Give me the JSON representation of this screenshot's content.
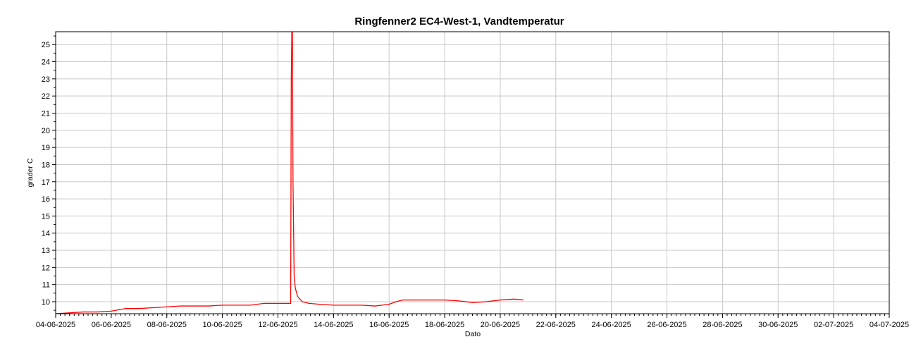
{
  "chart_data": {
    "type": "line",
    "title": "Ringfenner2 EC4-West-1, Vandtemperatur",
    "xlabel": "Dato",
    "ylabel": "grader C",
    "x_type": "date",
    "xlim": [
      "2025-06-04",
      "2025-07-04"
    ],
    "ylim": [
      9.3,
      25.75
    ],
    "x_ticks": [
      "04-06-2025",
      "06-06-2025",
      "08-06-2025",
      "10-06-2025",
      "12-06-2025",
      "14-06-2025",
      "16-06-2025",
      "18-06-2025",
      "20-06-2025",
      "22-06-2025",
      "24-06-2025",
      "26-06-2025",
      "28-06-2025",
      "30-06-2025",
      "02-07-2025",
      "04-07-2025"
    ],
    "y_ticks": [
      "10",
      "11",
      "12",
      "13",
      "14",
      "15",
      "16",
      "17",
      "18",
      "19",
      "20",
      "21",
      "22",
      "23",
      "24",
      "25"
    ],
    "grid": true,
    "legend": "none",
    "series": [
      {
        "color": "#ff0000",
        "x": [
          "2025-06-04T00:00",
          "2025-06-04T12:00",
          "2025-06-05T00:00",
          "2025-06-05T12:00",
          "2025-06-06T00:00",
          "2025-06-06T12:00",
          "2025-06-07T00:00",
          "2025-06-07T12:00",
          "2025-06-08T00:00",
          "2025-06-08T12:00",
          "2025-06-09T00:00",
          "2025-06-09T12:00",
          "2025-06-10T00:00",
          "2025-06-10T12:00",
          "2025-06-11T00:00",
          "2025-06-11T12:00",
          "2025-06-12T00:00",
          "2025-06-12T10:00",
          "2025-06-12T11:00",
          "2025-06-12T11:30",
          "2025-06-12T12:00",
          "2025-06-12T12:30",
          "2025-06-12T13:00",
          "2025-06-12T14:00",
          "2025-06-12T15:00",
          "2025-06-12T17:00",
          "2025-06-12T21:00",
          "2025-06-13T03:00",
          "2025-06-13T12:00",
          "2025-06-14T00:00",
          "2025-06-14T12:00",
          "2025-06-15T00:00",
          "2025-06-15T12:00",
          "2025-06-16T00:00",
          "2025-06-16T06:00",
          "2025-06-16T12:00",
          "2025-06-17T00:00",
          "2025-06-17T12:00",
          "2025-06-18T00:00",
          "2025-06-18T12:00",
          "2025-06-19T00:00",
          "2025-06-19T12:00",
          "2025-06-20T00:00",
          "2025-06-20T12:00",
          "2025-06-20T20:00"
        ],
        "y": [
          9.3,
          9.35,
          9.4,
          9.4,
          9.45,
          9.6,
          9.6,
          9.65,
          9.7,
          9.75,
          9.75,
          9.75,
          9.8,
          9.8,
          9.8,
          9.9,
          9.9,
          9.9,
          9.9,
          23.0,
          25.75,
          25.75,
          17.0,
          11.5,
          10.8,
          10.3,
          10.0,
          9.9,
          9.85,
          9.8,
          9.8,
          9.8,
          9.75,
          9.85,
          10.0,
          10.1,
          10.1,
          10.1,
          10.1,
          10.05,
          9.95,
          10.0,
          10.1,
          10.15,
          10.1
        ]
      }
    ]
  }
}
